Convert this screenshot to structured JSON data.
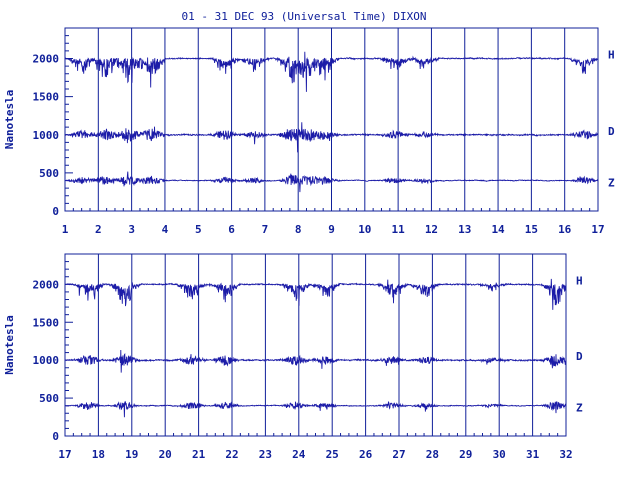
{
  "title": "01 - 31 DEC 93 (Universal Time) DIXON",
  "colors": {
    "ink": "#10209a",
    "trace": "#1c1ca8",
    "background": "#ffffff"
  },
  "chart_data": [
    {
      "type": "line",
      "panel": "top",
      "ylabel": "Nanotesla",
      "ylim": [
        0,
        2400
      ],
      "yticks": [
        0,
        500,
        1000,
        1500,
        2000
      ],
      "xlim": [
        1,
        17
      ],
      "xticks": [
        "1",
        "2",
        "3",
        "4",
        "5",
        "6",
        "7",
        "8",
        "9",
        "10",
        "11",
        "12",
        "13",
        "14",
        "15",
        "16",
        "17"
      ],
      "grid": "vertical lines at each day",
      "series": [
        {
          "name": "H",
          "baseline": 2000,
          "label": "H"
        },
        {
          "name": "D",
          "baseline": 1000,
          "label": "D"
        },
        {
          "name": "Z",
          "baseline": 400,
          "label": "Z"
        }
      ],
      "disturbed_days": [
        {
          "day": 1.5,
          "amp": 0.6
        },
        {
          "day": 2.2,
          "amp": 0.7
        },
        {
          "day": 2.9,
          "amp": 1.0
        },
        {
          "day": 3.6,
          "amp": 0.8
        },
        {
          "day": 5.8,
          "amp": 0.6
        },
        {
          "day": 6.7,
          "amp": 0.5
        },
        {
          "day": 7.8,
          "amp": 0.9
        },
        {
          "day": 8.3,
          "amp": 0.8
        },
        {
          "day": 8.8,
          "amp": 0.6
        },
        {
          "day": 10.9,
          "amp": 0.5
        },
        {
          "day": 11.8,
          "amp": 0.4
        },
        {
          "day": 16.6,
          "amp": 0.6
        }
      ]
    },
    {
      "type": "line",
      "panel": "bottom",
      "ylabel": "Nanotesla",
      "ylim": [
        0,
        2400
      ],
      "yticks": [
        0,
        500,
        1000,
        1500,
        2000
      ],
      "xlim": [
        17,
        32
      ],
      "xticks": [
        "17",
        "18",
        "19",
        "20",
        "21",
        "22",
        "23",
        "24",
        "25",
        "26",
        "27",
        "28",
        "29",
        "30",
        "31",
        "32"
      ],
      "grid": "vertical lines at each day",
      "series": [
        {
          "name": "H",
          "baseline": 2000,
          "label": "H"
        },
        {
          "name": "D",
          "baseline": 1000,
          "label": "D"
        },
        {
          "name": "Z",
          "baseline": 400,
          "label": "Z"
        }
      ],
      "disturbed_days": [
        {
          "day": 17.7,
          "amp": 0.7
        },
        {
          "day": 18.8,
          "amp": 0.8
        },
        {
          "day": 20.8,
          "amp": 0.6
        },
        {
          "day": 21.8,
          "amp": 0.7
        },
        {
          "day": 23.9,
          "amp": 0.7
        },
        {
          "day": 24.8,
          "amp": 0.5
        },
        {
          "day": 26.8,
          "amp": 0.5
        },
        {
          "day": 27.8,
          "amp": 0.5
        },
        {
          "day": 29.8,
          "amp": 0.3
        },
        {
          "day": 31.7,
          "amp": 0.8
        }
      ]
    }
  ]
}
